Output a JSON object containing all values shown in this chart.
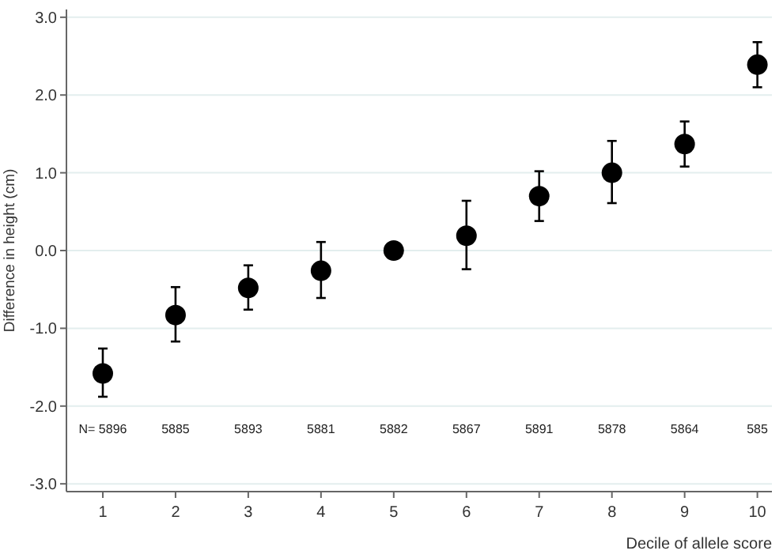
{
  "chart_data": {
    "type": "scatter",
    "xlabel": "Decile of allele score",
    "ylabel": "Difference in height (cm)",
    "x": [
      1,
      2,
      3,
      4,
      5,
      6,
      7,
      8,
      9,
      10
    ],
    "values": [
      -1.58,
      -0.83,
      -0.48,
      -0.26,
      0,
      0.19,
      0.7,
      1.0,
      1.37,
      2.39
    ],
    "errors": [
      [
        -1.88,
        -1.26
      ],
      [
        -1.17,
        -0.47
      ],
      [
        -0.76,
        -0.19
      ],
      [
        -0.61,
        0.11
      ],
      null,
      [
        -0.24,
        0.64
      ],
      [
        0.38,
        1.02
      ],
      [
        0.61,
        1.41
      ],
      [
        1.08,
        1.66
      ],
      [
        2.1,
        2.68
      ]
    ],
    "color": "#000000",
    "marker": "circle",
    "xlim": [
      0.5,
      10.2
    ],
    "xticks": [
      1,
      2,
      3,
      4,
      5,
      6,
      7,
      8,
      9,
      10
    ],
    "ylim": [
      -3.1,
      3.1
    ],
    "yticks": [
      {
        "value": -3,
        "label": "-3.0"
      },
      {
        "value": -2,
        "label": "-2.0"
      },
      {
        "value": -1,
        "label": "-1.0"
      },
      {
        "value": 0,
        "label": "0.0"
      },
      {
        "value": 1,
        "label": "1.0"
      },
      {
        "value": 2,
        "label": "2.0"
      },
      {
        "value": 3,
        "label": "3.0"
      }
    ],
    "grid": "y",
    "annotations": [
      "N= 5896",
      "5885",
      "5893",
      "5881",
      "5882",
      "5867",
      "5891",
      "5878",
      "5864",
      "585"
    ]
  }
}
